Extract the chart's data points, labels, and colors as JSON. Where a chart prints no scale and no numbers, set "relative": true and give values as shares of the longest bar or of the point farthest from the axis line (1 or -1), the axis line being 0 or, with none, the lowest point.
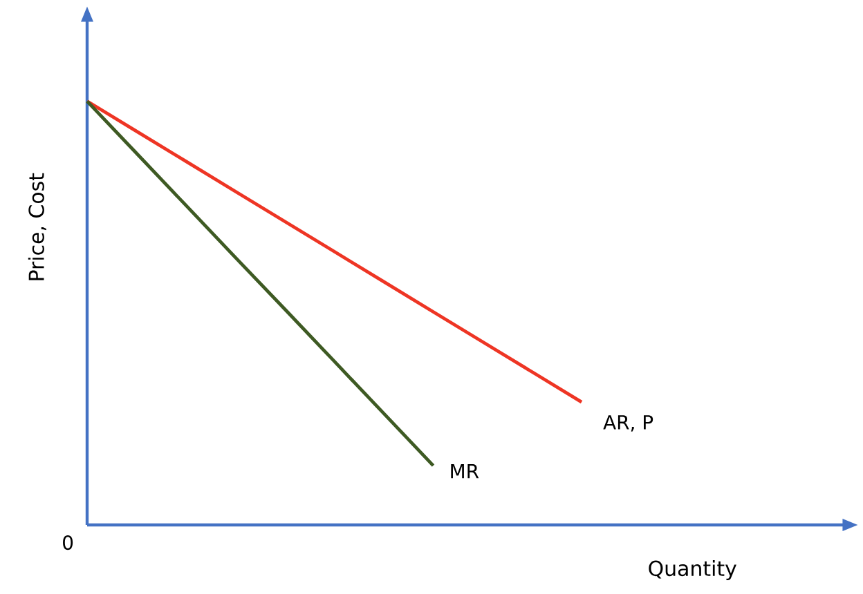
{
  "chart_data": {
    "type": "line",
    "relative": true,
    "xlabel": "Quantity",
    "ylabel": "Price, Cost",
    "annotations": [
      "0"
    ],
    "legend": false,
    "marker": "none",
    "line_style": "solid",
    "categories": [
      null,
      null,
      null,
      null,
      null,
      null,
      null,
      null,
      null,
      null,
      null,
      null,
      null,
      null,
      null,
      null
    ],
    "series": [
      {
        "name": "AR, P",
        "color": "#ee3524",
        "values": [
          1,
          0.929,
          0.858,
          0.787,
          0.716,
          0.645,
          0.574,
          0.503,
          0.432,
          0.361,
          0.29,
          null,
          null,
          null,
          null,
          null
        ]
      },
      {
        "name": "MR",
        "color": "#3e5a23",
        "values": [
          1,
          0.877,
          0.754,
          0.631,
          0.509,
          0.386,
          0.263,
          0.14,
          null,
          null,
          null,
          null,
          null,
          null,
          null,
          null
        ]
      }
    ]
  }
}
